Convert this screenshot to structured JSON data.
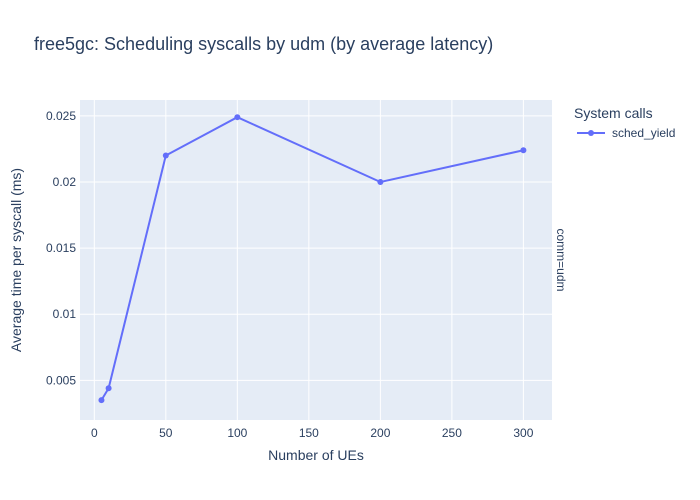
{
  "chart_data": {
    "type": "line",
    "title": "free5gc: Scheduling syscalls by udm (by average latency)",
    "xlabel": "Number of UEs",
    "ylabel": "Average time per syscall (ms)",
    "facet_label": "comm=udm",
    "legend_title": "System calls",
    "xlim": [
      -10,
      320
    ],
    "ylim": [
      0.002,
      0.0262
    ],
    "x_ticks": [
      0,
      50,
      100,
      150,
      200,
      250,
      300
    ],
    "x_tick_labels": [
      "0",
      "50",
      "100",
      "150",
      "200",
      "250",
      "300"
    ],
    "y_ticks": [
      0.005,
      0.01,
      0.015,
      0.02,
      0.025
    ],
    "y_tick_labels": [
      "0.005",
      "0.01",
      "0.015",
      "0.02",
      "0.025"
    ],
    "grid": true,
    "legend_position": "top-right",
    "series": [
      {
        "name": "sched_yield",
        "color": "#636efa",
        "x": [
          5,
          10,
          50,
          100,
          200,
          300
        ],
        "y": [
          0.0035,
          0.0044,
          0.022,
          0.0249,
          0.02,
          0.0224
        ]
      }
    ]
  },
  "colors": {
    "plot_background": "#e5ecf6",
    "gridline": "#ffffff",
    "text": "#2a3f5f"
  }
}
